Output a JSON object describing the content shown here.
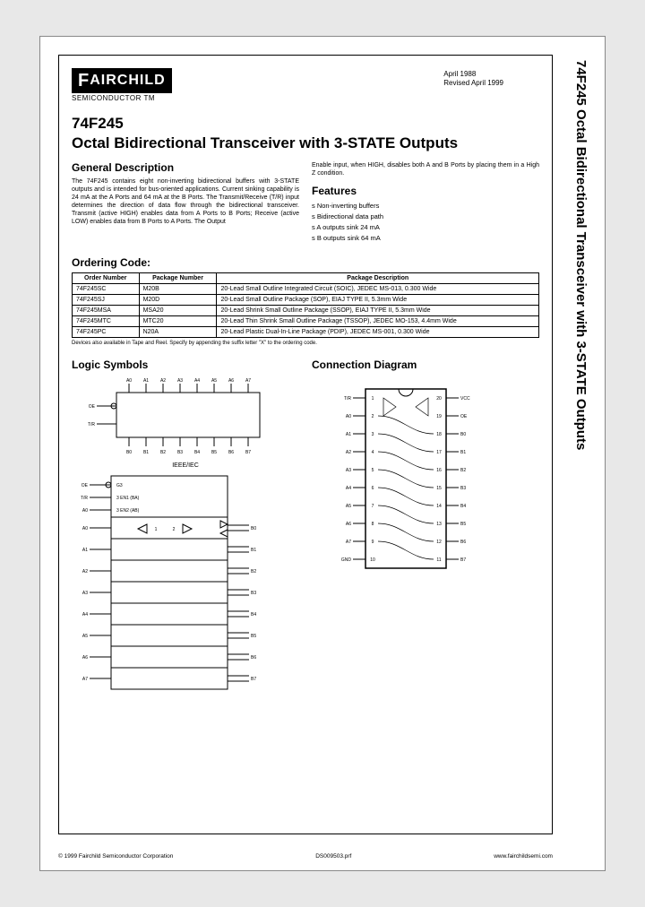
{
  "logo": {
    "text": "FAIRCHILD",
    "sub": "SEMICONDUCTOR TM"
  },
  "dates": {
    "line1": "April 1988",
    "line2": "Revised April 1999"
  },
  "part_number": "74F245",
  "title": "Octal Bidirectional Transceiver with 3-STATE Outputs",
  "side_title": "74F245 Octal Bidirectional Transceiver with 3-STATE Outputs",
  "general": {
    "heading": "General Description",
    "col1": "The 74F245 contains eight non-inverting bidirectional buffers with 3-STATE outputs and is intended for bus-oriented applications. Current sinking capability is 24 mA at the A Ports and 64 mA at the B Ports. The Transmit/Receive (T/R) input determines the direction of data flow through the bidirectional transceiver. Transmit (active HIGH) enables data from A Ports to B Ports; Receive (active LOW) enables data from B Ports to A Ports. The Output",
    "col2": "Enable input, when HIGH, disables both A and B Ports by placing them in a High Z condition."
  },
  "features": {
    "heading": "Features",
    "items": [
      "Non-inverting buffers",
      "Bidirectional data path",
      "A outputs sink 24 mA",
      "B outputs sink 64 mA"
    ]
  },
  "ordering": {
    "heading": "Ordering Code:",
    "columns": [
      "Order Number",
      "Package Number",
      "Package Description"
    ],
    "rows": [
      [
        "74F245SC",
        "M20B",
        "20-Lead Small Outline Integrated Circuit (SOIC), JEDEC MS-013, 0.300 Wide"
      ],
      [
        "74F245SJ",
        "M20D",
        "20-Lead Small Outline Package (SOP), EIAJ TYPE II, 5.3mm Wide"
      ],
      [
        "74F245MSA",
        "MSA20",
        "20-Lead Shrink Small Outline Package (SSOP), EIAJ TYPE II, 5.3mm Wide"
      ],
      [
        "74F245MTC",
        "MTC20",
        "20-Lead Thin Shrink Small Outline Package (TSSOP), JEDEC MO-153, 4.4mm Wide"
      ],
      [
        "74F245PC",
        "N20A",
        "20-Lead Plastic Dual-In-Line Package (PDIP), JEDEC MS-001, 0.300 Wide"
      ]
    ],
    "note": "Devices also available in Tape and Reel. Specify by appending the suffix letter \"X\" to the ordering code."
  },
  "logic_symbols_heading": "Logic Symbols",
  "connection_heading": "Connection Diagram",
  "ieee_label": "IEEE/IEC",
  "logic1": {
    "top_pins": [
      "A0",
      "A1",
      "A2",
      "A3",
      "A4",
      "A5",
      "A6",
      "A7"
    ],
    "bot_pins": [
      "B0",
      "B1",
      "B2",
      "B3",
      "B4",
      "B5",
      "B6",
      "B7"
    ],
    "left": [
      "OE",
      "T/R"
    ]
  },
  "logic2": {
    "hdr": [
      "OE",
      "T/R",
      "A0"
    ],
    "hdr_text": [
      "G3",
      "3 EN1 (BA)",
      "3 EN2 (AB)"
    ],
    "rows": [
      "A1",
      "A2",
      "A3",
      "A4",
      "A5",
      "A6",
      "A7"
    ],
    "rrows": [
      "B0",
      "B1",
      "B2",
      "B3",
      "B4",
      "B5",
      "B6",
      "B7"
    ]
  },
  "conn": {
    "left": [
      {
        "n": "1",
        "l": "T/R"
      },
      {
        "n": "2",
        "l": "A0"
      },
      {
        "n": "3",
        "l": "A1"
      },
      {
        "n": "4",
        "l": "A2"
      },
      {
        "n": "5",
        "l": "A3"
      },
      {
        "n": "6",
        "l": "A4"
      },
      {
        "n": "7",
        "l": "A5"
      },
      {
        "n": "8",
        "l": "A6"
      },
      {
        "n": "9",
        "l": "A7"
      },
      {
        "n": "10",
        "l": "GND"
      }
    ],
    "right": [
      {
        "n": "20",
        "l": "VCC"
      },
      {
        "n": "19",
        "l": "OE"
      },
      {
        "n": "18",
        "l": "B0"
      },
      {
        "n": "17",
        "l": "B1"
      },
      {
        "n": "16",
        "l": "B2"
      },
      {
        "n": "15",
        "l": "B3"
      },
      {
        "n": "14",
        "l": "B4"
      },
      {
        "n": "13",
        "l": "B5"
      },
      {
        "n": "12",
        "l": "B6"
      },
      {
        "n": "11",
        "l": "B7"
      }
    ]
  },
  "footer": {
    "left": "© 1999 Fairchild Semiconductor Corporation",
    "mid": "DS009503.prf",
    "right": "www.fairchildsemi.com"
  },
  "colors": {
    "stroke": "#000000",
    "fill_none": "none"
  }
}
